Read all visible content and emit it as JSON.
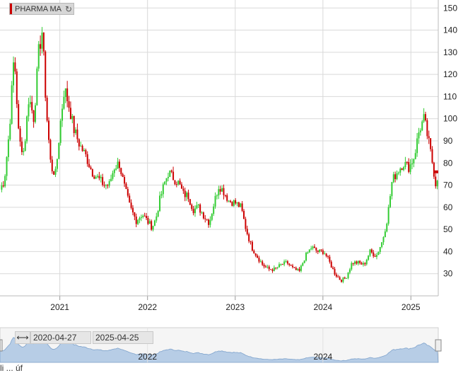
{
  "legend": {
    "series_name": "PHARMA MA",
    "refresh_icon": "refresh-icon",
    "series_color": "#cc0000"
  },
  "navigator": {
    "start_date": "2020-04-27",
    "end_date": "2025-04-25",
    "x_ticks": [
      "2022",
      "2024"
    ],
    "arrows_icon": "horizontal-arrows-icon"
  },
  "footer": {
    "partial_text": "li ... úf"
  },
  "colors": {
    "up": "#33cc33",
    "down": "#cc0000",
    "grid": "#d9d9d9",
    "navigator_fill": "#b7cde6"
  },
  "chart_data": {
    "type": "candlestick",
    "title": "",
    "xlabel": "",
    "ylabel": "",
    "x_ticks": [
      "2021",
      "2022",
      "2023",
      "2024",
      "2025"
    ],
    "y_ticks": [
      30,
      40,
      50,
      60,
      70,
      80,
      90,
      100,
      110,
      120,
      130,
      140,
      150
    ],
    "ylim": [
      20,
      152
    ],
    "xlim": [
      "2020-04-27",
      "2025-04-25"
    ],
    "y_axis_side": "right",
    "grid": true,
    "close_points": [
      [
        "2020-04-27",
        68
      ],
      [
        "2020-05-15",
        72
      ],
      [
        "2020-06-05",
        95
      ],
      [
        "2020-06-25",
        130
      ],
      [
        "2020-07-15",
        90
      ],
      [
        "2020-08-05",
        85
      ],
      [
        "2020-08-25",
        110
      ],
      [
        "2020-09-15",
        100
      ],
      [
        "2020-10-05",
        130
      ],
      [
        "2020-10-20",
        140
      ],
      [
        "2020-11-05",
        105
      ],
      [
        "2020-11-25",
        78
      ],
      [
        "2020-12-15",
        75
      ],
      [
        "2021-01-05",
        100
      ],
      [
        "2021-01-20",
        114
      ],
      [
        "2021-02-10",
        105
      ],
      [
        "2021-03-01",
        95
      ],
      [
        "2021-03-25",
        88
      ],
      [
        "2021-04-20",
        83
      ],
      [
        "2021-05-15",
        76
      ],
      [
        "2021-06-10",
        73
      ],
      [
        "2021-07-05",
        70
      ],
      [
        "2021-07-25",
        70
      ],
      [
        "2021-08-15",
        78
      ],
      [
        "2021-09-05",
        80
      ],
      [
        "2021-09-25",
        70
      ],
      [
        "2021-10-20",
        60
      ],
      [
        "2021-11-15",
        54
      ],
      [
        "2021-12-10",
        57
      ],
      [
        "2022-01-05",
        53
      ],
      [
        "2022-01-20",
        51
      ],
      [
        "2022-02-05",
        55
      ],
      [
        "2022-02-20",
        63
      ],
      [
        "2022-03-10",
        70
      ],
      [
        "2022-03-30",
        76
      ],
      [
        "2022-04-20",
        73
      ],
      [
        "2022-05-10",
        71
      ],
      [
        "2022-05-30",
        66
      ],
      [
        "2022-06-20",
        65
      ],
      [
        "2022-07-10",
        59
      ],
      [
        "2022-08-01",
        60
      ],
      [
        "2022-08-25",
        56
      ],
      [
        "2022-09-15",
        53
      ],
      [
        "2022-10-05",
        62
      ],
      [
        "2022-10-25",
        70
      ],
      [
        "2022-11-15",
        67
      ],
      [
        "2022-12-05",
        63
      ],
      [
        "2023-01-01",
        62
      ],
      [
        "2023-01-25",
        60
      ],
      [
        "2023-02-15",
        50
      ],
      [
        "2023-03-10",
        42
      ],
      [
        "2023-04-01",
        38
      ],
      [
        "2023-04-25",
        34
      ],
      [
        "2023-05-20",
        32
      ],
      [
        "2023-06-15",
        32
      ],
      [
        "2023-07-10",
        34
      ],
      [
        "2023-08-05",
        35
      ],
      [
        "2023-09-01",
        32
      ],
      [
        "2023-09-25",
        31
      ],
      [
        "2023-10-20",
        38
      ],
      [
        "2023-11-15",
        42
      ],
      [
        "2023-12-10",
        40
      ],
      [
        "2024-01-05",
        40
      ],
      [
        "2024-01-25",
        36
      ],
      [
        "2024-02-20",
        30
      ],
      [
        "2024-03-15",
        27
      ],
      [
        "2024-04-05",
        28
      ],
      [
        "2024-05-01",
        35
      ],
      [
        "2024-05-25",
        35
      ],
      [
        "2024-06-20",
        34
      ],
      [
        "2024-07-15",
        40
      ],
      [
        "2024-08-10",
        38
      ],
      [
        "2024-09-05",
        45
      ],
      [
        "2024-09-25",
        55
      ],
      [
        "2024-10-15",
        72
      ],
      [
        "2024-11-05",
        76
      ],
      [
        "2024-12-01",
        80
      ],
      [
        "2024-12-25",
        78
      ],
      [
        "2025-01-15",
        83
      ],
      [
        "2025-02-05",
        95
      ],
      [
        "2025-02-25",
        100
      ],
      [
        "2025-03-15",
        90
      ],
      [
        "2025-04-01",
        80
      ],
      [
        "2025-04-15",
        70
      ],
      [
        "2025-04-25",
        76
      ]
    ],
    "last_value": 76
  }
}
